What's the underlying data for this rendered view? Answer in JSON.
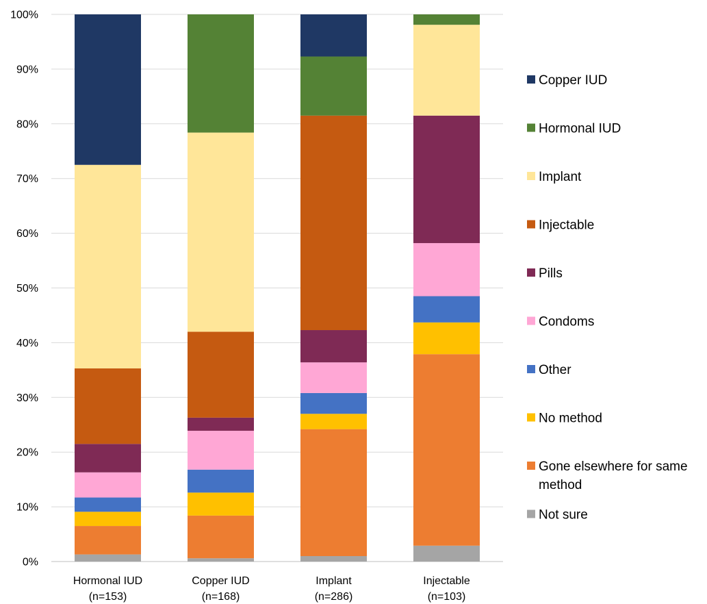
{
  "chart_data": {
    "type": "bar",
    "stacked": true,
    "percent_stacked": true,
    "title": "",
    "xlabel": "",
    "ylabel": "",
    "ylim": [
      0,
      100
    ],
    "y_ticks": [
      "0%",
      "10%",
      "20%",
      "30%",
      "40%",
      "50%",
      "60%",
      "70%",
      "80%",
      "90%",
      "100%"
    ],
    "grid": true,
    "legend_position": "right",
    "categories": [
      [
        "Hormonal IUD",
        "(n=153)"
      ],
      [
        "Copper IUD",
        "(n=168)"
      ],
      [
        "Implant",
        "(n=286)"
      ],
      [
        "Injectable",
        "(n=103)"
      ]
    ],
    "series": [
      {
        "name": "Not sure",
        "color": "#A5A5A5",
        "values": [
          1.3,
          0.6,
          1.0,
          2.9
        ]
      },
      {
        "name": "Gone elsewhere for same method",
        "color": "#ED7D31",
        "values": [
          5.2,
          7.8,
          23.2,
          35.0
        ]
      },
      {
        "name": "No method",
        "color": "#FFC000",
        "values": [
          2.6,
          4.2,
          2.8,
          5.8
        ]
      },
      {
        "name": "Other",
        "color": "#4472C4",
        "values": [
          2.6,
          4.2,
          3.8,
          4.8
        ]
      },
      {
        "name": "Condoms",
        "color": "#FFA7D5",
        "values": [
          4.6,
          7.1,
          5.6,
          9.7
        ]
      },
      {
        "name": "Pills",
        "color": "#7F2A55",
        "values": [
          5.2,
          2.4,
          5.9,
          23.3
        ]
      },
      {
        "name": "Injectable",
        "color": "#C55A11",
        "values": [
          13.8,
          15.7,
          39.2,
          0
        ]
      },
      {
        "name": "Implant",
        "color": "#FFE699",
        "values": [
          37.2,
          36.4,
          0,
          16.6
        ]
      },
      {
        "name": "Hormonal IUD",
        "color": "#548235",
        "values": [
          0,
          21.6,
          10.8,
          1.9
        ]
      },
      {
        "name": "Copper IUD",
        "color": "#1F3864",
        "values": [
          27.5,
          0,
          7.7,
          0
        ]
      }
    ],
    "legend_order": [
      "Copper IUD",
      "Hormonal IUD",
      "Implant",
      "Injectable",
      "Pills",
      "Condoms",
      "Other",
      "No method",
      "Gone elsewhere for same method",
      "Not sure"
    ],
    "legend_lines": {
      "Gone elsewhere for same method": [
        "Gone elsewhere for same",
        "method"
      ]
    }
  }
}
